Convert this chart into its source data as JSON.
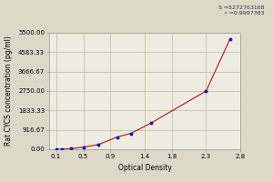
{
  "title": "",
  "xlabel": "Optical Density",
  "ylabel": "Rat CYCS concentration (pg/ml)",
  "equation_text": "S =5272763168\nr =0.9997383",
  "bg_color": "#ddd8c8",
  "plot_bg_color": "#f0ebe0",
  "grid_color": "#bbbb99",
  "dot_color": "#1a1aaa",
  "line_color": "#993333",
  "x_data": [
    0.1,
    0.18,
    0.32,
    0.5,
    0.72,
    1.0,
    1.2,
    1.5,
    2.3,
    2.65
  ],
  "y_data": [
    0,
    5,
    30,
    100,
    220,
    580,
    750,
    1250,
    2750,
    5200
  ],
  "xlim": [
    0.0,
    2.8
  ],
  "ylim": [
    0,
    5500
  ],
  "xticks": [
    0.1,
    0.5,
    0.9,
    1.4,
    1.8,
    2.3,
    2.8
  ],
  "yticks": [
    0.0,
    916.67,
    1833.33,
    2750.0,
    3666.67,
    4583.33,
    5500.0
  ],
  "ytick_labels": [
    "0.00",
    "916.67",
    "1833.33",
    "2750.00",
    "3666.67",
    "4583.33",
    "5500.00"
  ],
  "font_size": 5.0,
  "label_font_size": 5.5,
  "equation_fontsize": 4.5
}
